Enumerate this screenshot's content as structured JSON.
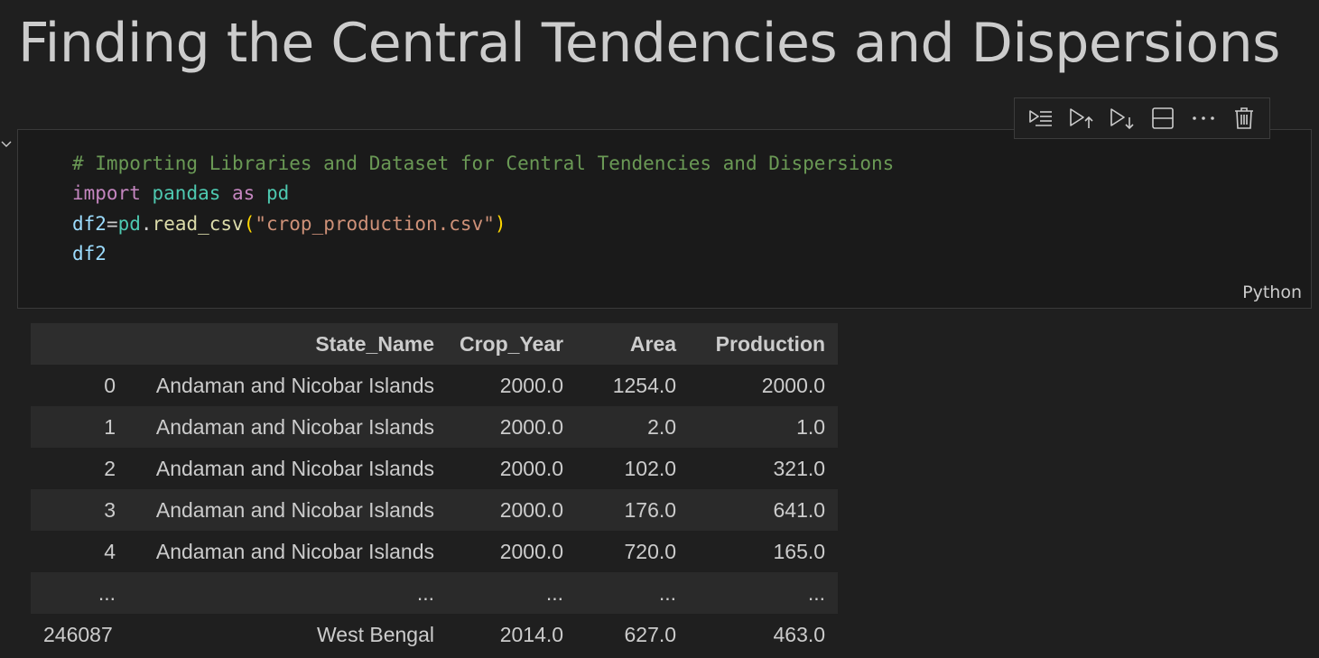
{
  "markdown": {
    "title": "Finding the Central Tendencies and Dispersions"
  },
  "toolbar": {
    "items": [
      {
        "name": "run-by-line",
        "icon": "run-by-line-icon"
      },
      {
        "name": "execute-above",
        "icon": "execute-above-icon"
      },
      {
        "name": "execute-below",
        "icon": "execute-below-icon"
      },
      {
        "name": "split-cell",
        "icon": "split-cell-icon"
      },
      {
        "name": "more",
        "icon": "ellipsis-icon"
      },
      {
        "name": "delete",
        "icon": "trash-icon"
      }
    ]
  },
  "code_cell": {
    "language": "Python",
    "lines": {
      "comment": "# Importing Libraries and Dataset for Central Tendencies and Dispersions",
      "import_kw": "import",
      "import_mod": "pandas",
      "as_kw": "as",
      "alias": "pd",
      "assign_var": "df2",
      "assign_eq": "=",
      "assign_obj": "pd",
      "assign_dot": ".",
      "assign_fn": "read_csv",
      "paren_open": "(",
      "assign_str": "\"crop_production.csv\"",
      "paren_close": ")",
      "last_var": "df2"
    }
  },
  "output": {
    "columns": [
      "",
      "State_Name",
      "Crop_Year",
      "Area",
      "Production"
    ],
    "rows": [
      [
        "0",
        "Andaman and Nicobar Islands",
        "2000.0",
        "1254.0",
        "2000.0"
      ],
      [
        "1",
        "Andaman and Nicobar Islands",
        "2000.0",
        "2.0",
        "1.0"
      ],
      [
        "2",
        "Andaman and Nicobar Islands",
        "2000.0",
        "102.0",
        "321.0"
      ],
      [
        "3",
        "Andaman and Nicobar Islands",
        "2000.0",
        "176.0",
        "641.0"
      ],
      [
        "4",
        "Andaman and Nicobar Islands",
        "2000.0",
        "720.0",
        "165.0"
      ],
      [
        "...",
        "...",
        "...",
        "...",
        "..."
      ],
      [
        "246087",
        "West Bengal",
        "2014.0",
        "627.0",
        "463.0"
      ]
    ]
  },
  "colors": {
    "background": "#1f1f1f",
    "comment": "#6a9955",
    "keyword": "#c586c0",
    "module": "#4ec9b0",
    "variable": "#9cdcfe",
    "function": "#dcdcaa",
    "string": "#ce9178"
  }
}
